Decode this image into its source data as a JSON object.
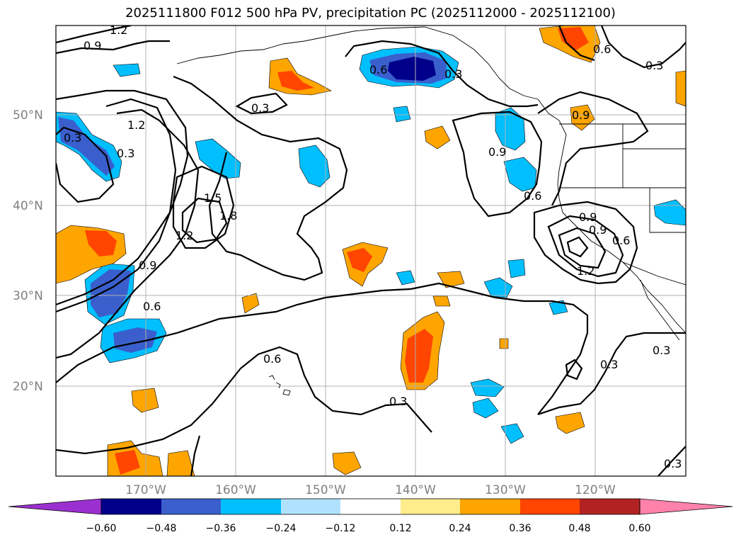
{
  "title": "2025111800 F012 500 hPa PV, precipitation PC (2025112000 - 2025112100)",
  "latitude_labels": [
    "50°N",
    "40°N",
    "30°N",
    "20°N"
  ],
  "longitude_labels": [
    "170°W",
    "160°W",
    "150°W",
    "140°W",
    "130°W",
    "120°W"
  ],
  "contour_labels": [
    "1.2",
    "0.9",
    "0.6",
    "0.3",
    "0.3",
    "0.9",
    "0.6",
    "0.3",
    "1.2",
    "0.3",
    "1.5",
    "1.8",
    "1.2",
    "0.9",
    "0.6",
    "0.3",
    "0.9",
    "0.6",
    "1.2",
    "0.3",
    "0.6",
    "0.3",
    "0.3",
    "0.3",
    "0.9",
    "0.9",
    "0.6"
  ],
  "colorbar": {
    "tick_labels": [
      "−0.60",
      "−0.48",
      "−0.36",
      "−0.24",
      "−0.12",
      "0.12",
      "0.24",
      "0.36",
      "0.48",
      "0.60"
    ],
    "colors": [
      "#9b30d0",
      "#00008b",
      "#3a5fcd",
      "#00bfff",
      "#b0e2ff",
      "#ffffff",
      "#ffec8b",
      "#ffa500",
      "#ff4500",
      "#b22222",
      "#ff82ab"
    ]
  }
}
